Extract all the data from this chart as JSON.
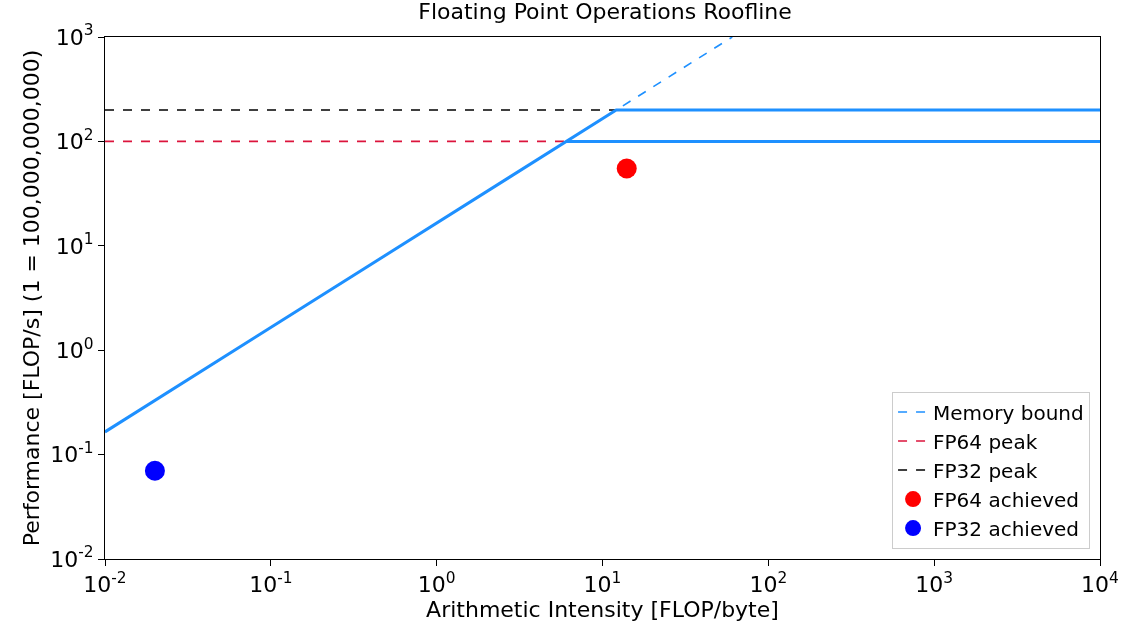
{
  "chart_data": {
    "type": "line",
    "title": "Floating Point Operations Roofline",
    "xlabel": "Arithmetic Intensity [FLOP/byte]",
    "ylabel": "Performance [FLOP/s] (1 = 100,000,000,000)",
    "log": "xy",
    "grid": false,
    "legend": "bottom right",
    "xlim": [
      0.01,
      10000
    ],
    "ylim": [
      0.01,
      1000
    ],
    "xticks": [
      {
        "value": 0.01,
        "label": "10$^{-2}$"
      },
      {
        "value": 0.1,
        "label": "10$^{-1}$"
      },
      {
        "value": 1,
        "label": "10$^{0}$"
      },
      {
        "value": 10,
        "label": "10$^{1}$"
      },
      {
        "value": 100,
        "label": "10$^{2}$"
      },
      {
        "value": 1000,
        "label": "10$^{3}$"
      },
      {
        "value": 10000,
        "label": "10$^{4}$"
      }
    ],
    "yticks": [
      {
        "value": 0.01,
        "label": "10$^{-2}$"
      },
      {
        "value": 0.1,
        "label": "10$^{-1}$"
      },
      {
        "value": 1,
        "label": "10$^{0}$"
      },
      {
        "value": 10,
        "label": "10$^{1}$"
      },
      {
        "value": 100,
        "label": "10$^{2}$"
      },
      {
        "value": 1000,
        "label": "10$^{3}$"
      }
    ],
    "series": [
      {
        "name": "Memory bound",
        "color": "#1e90ff",
        "line_style": "dashed",
        "marker": "none",
        "x": [
          0.01,
          60.6
        ],
        "values": [
          0.165,
          1000
        ]
      },
      {
        "name": "FP64 peak",
        "color": "#dc143c",
        "line_style": "dashed",
        "marker": "none",
        "x": [
          0.01,
          6.06
        ],
        "values": [
          100,
          100
        ]
      },
      {
        "name": "FP32 peak",
        "color": "#000000",
        "line_style": "dashed",
        "marker": "none",
        "x": [
          0.01,
          12.1
        ],
        "values": [
          200,
          200
        ]
      },
      {
        "color": "#1e90ff",
        "line_style": "solid",
        "marker": "none",
        "x": [
          0.01,
          12.1,
          10000
        ],
        "values": [
          0.165,
          200,
          200
        ]
      },
      {
        "color": "#1e90ff",
        "line_style": "solid",
        "marker": "none",
        "x": [
          6.06,
          10000
        ],
        "values": [
          100,
          100
        ]
      },
      {
        "name": "FP64 achieved",
        "type": "scatter",
        "color": "#ff0000",
        "marker": "circle",
        "x": [
          14
        ],
        "values": [
          55
        ]
      },
      {
        "name": "FP32 achieved",
        "type": "scatter",
        "color": "#0000ff",
        "marker": "circle",
        "x": [
          0.02
        ],
        "values": [
          0.07
        ]
      }
    ]
  }
}
